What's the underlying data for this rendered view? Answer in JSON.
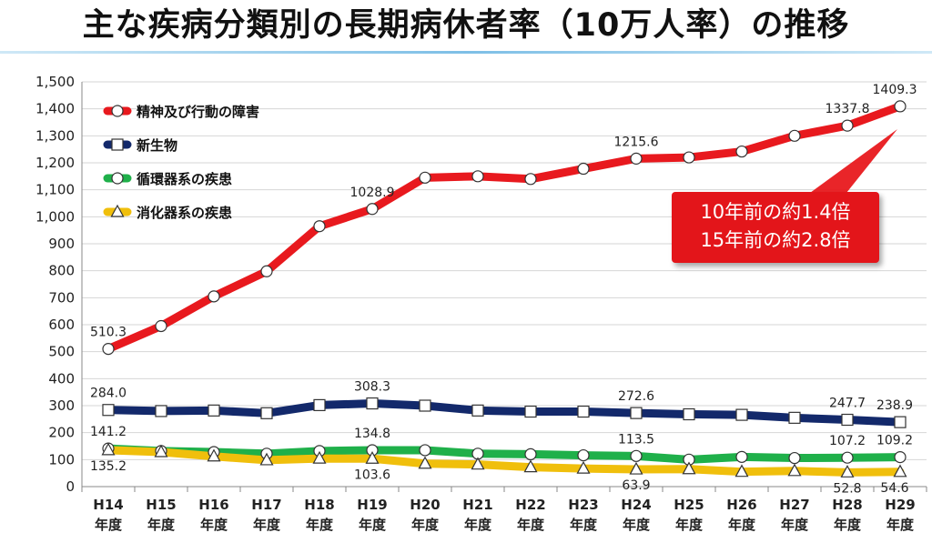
{
  "title": "主な疾病分類別の長期病休者率（10万人率）の推移",
  "callout": {
    "line1": "10年前の約1.4倍",
    "line2": "15年前の約2.8倍",
    "color": "#e3151a"
  },
  "chart_data": {
    "type": "line",
    "title": "主な疾病分類別の長期病休者率（10万人率）の推移",
    "categories": [
      "H14\n年度",
      "H15\n年度",
      "H16\n年度",
      "H17\n年度",
      "H18\n年度",
      "H19\n年度",
      "H20\n年度",
      "H21\n年度",
      "H22\n年度",
      "H23\n年度",
      "H24\n年度",
      "H25\n年度",
      "H26\n年度",
      "H27\n年度",
      "H28\n年度",
      "H29\n年度"
    ],
    "ylim": [
      0,
      1500
    ],
    "yticks": [
      "0",
      "100",
      "200",
      "300",
      "400",
      "500",
      "600",
      "700",
      "800",
      "900",
      "1,000",
      "1,100",
      "1,200",
      "1,300",
      "1,400",
      "1,500"
    ],
    "grid": true,
    "legend_position": "top-left",
    "series": [
      {
        "name": "精神及び行動の障害",
        "color": "#e8191e",
        "marker": "circle",
        "values": [
          510.3,
          595,
          705,
          798,
          965,
          1028.9,
          1145,
          1150,
          1140,
          1178,
          1215.6,
          1220,
          1242,
          1300,
          1337.8,
          1409.3
        ],
        "labels": {
          "0": "510.3",
          "5": "1028.9",
          "10": "1215.6",
          "14": "1337.8",
          "15": "1409.3"
        }
      },
      {
        "name": "新生物",
        "color": "#13296b",
        "marker": "square",
        "values": [
          284.0,
          280,
          282,
          272,
          302,
          308.3,
          300,
          282,
          278,
          278,
          272.6,
          268,
          266,
          255,
          247.7,
          238.9
        ],
        "labels": {
          "0": "284.0",
          "5": "308.3",
          "10": "272.6",
          "14": "247.7",
          "15": "238.9"
        }
      },
      {
        "name": "循環器系の疾患",
        "color": "#1fb04a",
        "marker": "circle",
        "values": [
          141.2,
          132,
          128,
          122,
          132,
          134.8,
          135,
          122,
          120,
          116,
          113.5,
          100,
          110,
          106,
          107.2,
          109.2
        ],
        "labels": {
          "0": "141.2",
          "5": "134.8",
          "10": "113.5",
          "14": "107.2",
          "15": "109.2"
        }
      },
      {
        "name": "消化器系の疾患",
        "color": "#f0bf0c",
        "marker": "triangle",
        "values": [
          135.2,
          128,
          112,
          98,
          104,
          103.6,
          85,
          82,
          72,
          67,
          63.9,
          65,
          55,
          58,
          52.8,
          54.6
        ],
        "labels": {
          "0": "135.2",
          "5": "103.6",
          "10": "63.9",
          "14": "52.8",
          "15": "54.6"
        }
      }
    ]
  }
}
